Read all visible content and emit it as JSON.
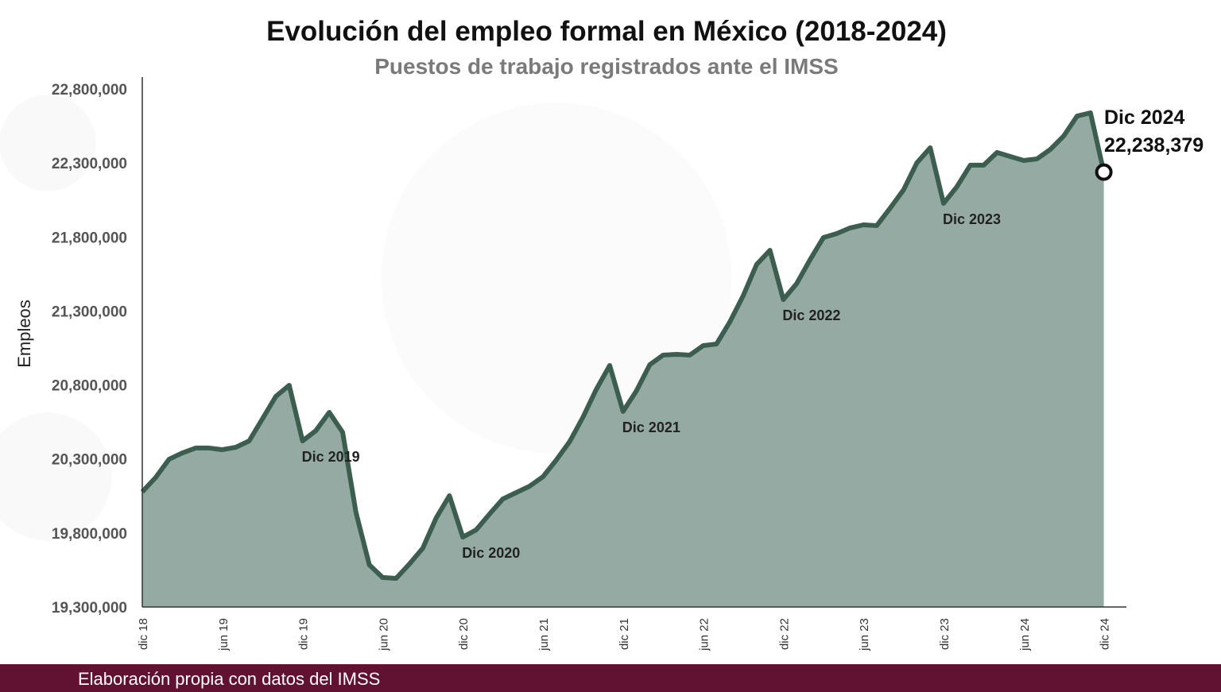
{
  "chart_data": {
    "type": "area",
    "title": "Evolución del empleo formal en México (2018-2024)",
    "subtitle": "Puestos de trabajo registrados ante el IMSS",
    "ylabel": "Empleos",
    "xlabel": "",
    "ylim": [
      19300000,
      22800000
    ],
    "yticks": [
      19300000,
      19800000,
      20300000,
      20800000,
      21300000,
      21800000,
      22300000,
      22800000
    ],
    "ytick_labels": [
      "19,300,000",
      "19,800,000",
      "20,300,000",
      "20,800,000",
      "21,300,000",
      "21,800,000",
      "22,300,000",
      "22,800,000"
    ],
    "xtick_labels": [
      "dic 18",
      "jun 19",
      "dic 19",
      "jun 20",
      "dic 20",
      "jun 21",
      "dic 21",
      "jun 22",
      "dic 22",
      "jun 23",
      "dic 23",
      "jun 24",
      "dic 24"
    ],
    "x_start": "dic 18",
    "x_end": "dic 24",
    "frequency": "monthly",
    "values": [
      20078000,
      20175000,
      20298000,
      20341000,
      20374000,
      20374000,
      20363000,
      20379000,
      20422000,
      20572000,
      20723000,
      20798000,
      20422000,
      20492000,
      20615000,
      20481000,
      19939000,
      19585000,
      19499000,
      19493000,
      19590000,
      19697000,
      19901000,
      20052000,
      19772000,
      19821000,
      19928000,
      20030000,
      20073000,
      20116000,
      20180000,
      20293000,
      20417000,
      20583000,
      20771000,
      20932000,
      20621000,
      20760000,
      20937000,
      21002000,
      21007000,
      21002000,
      21066000,
      21077000,
      21227000,
      21404000,
      21614000,
      21710000,
      21377000,
      21485000,
      21646000,
      21796000,
      21823000,
      21861000,
      21882000,
      21877000,
      21995000,
      22118000,
      22301000,
      22403000,
      22027000,
      22140000,
      22285000,
      22285000,
      22371000,
      22344000,
      22317000,
      22328000,
      22392000,
      22483000,
      22617000,
      22639000,
      22238379
    ],
    "annotations": [
      {
        "text": "Dic 2019",
        "month_index": 12
      },
      {
        "text": "Dic 2020",
        "month_index": 24
      },
      {
        "text": "Dic 2021",
        "month_index": 36
      },
      {
        "text": "Dic 2022",
        "month_index": 48
      },
      {
        "text": "Dic 2023",
        "month_index": 60
      }
    ],
    "final_label": {
      "title": "Dic 2024",
      "value": "22,238,379"
    },
    "colors": {
      "line": "#3b5e4f",
      "fill": "#95aaa2",
      "footer": "#611232"
    },
    "grid": false
  },
  "footer": {
    "source": "Elaboración propia con datos del IMSS"
  }
}
